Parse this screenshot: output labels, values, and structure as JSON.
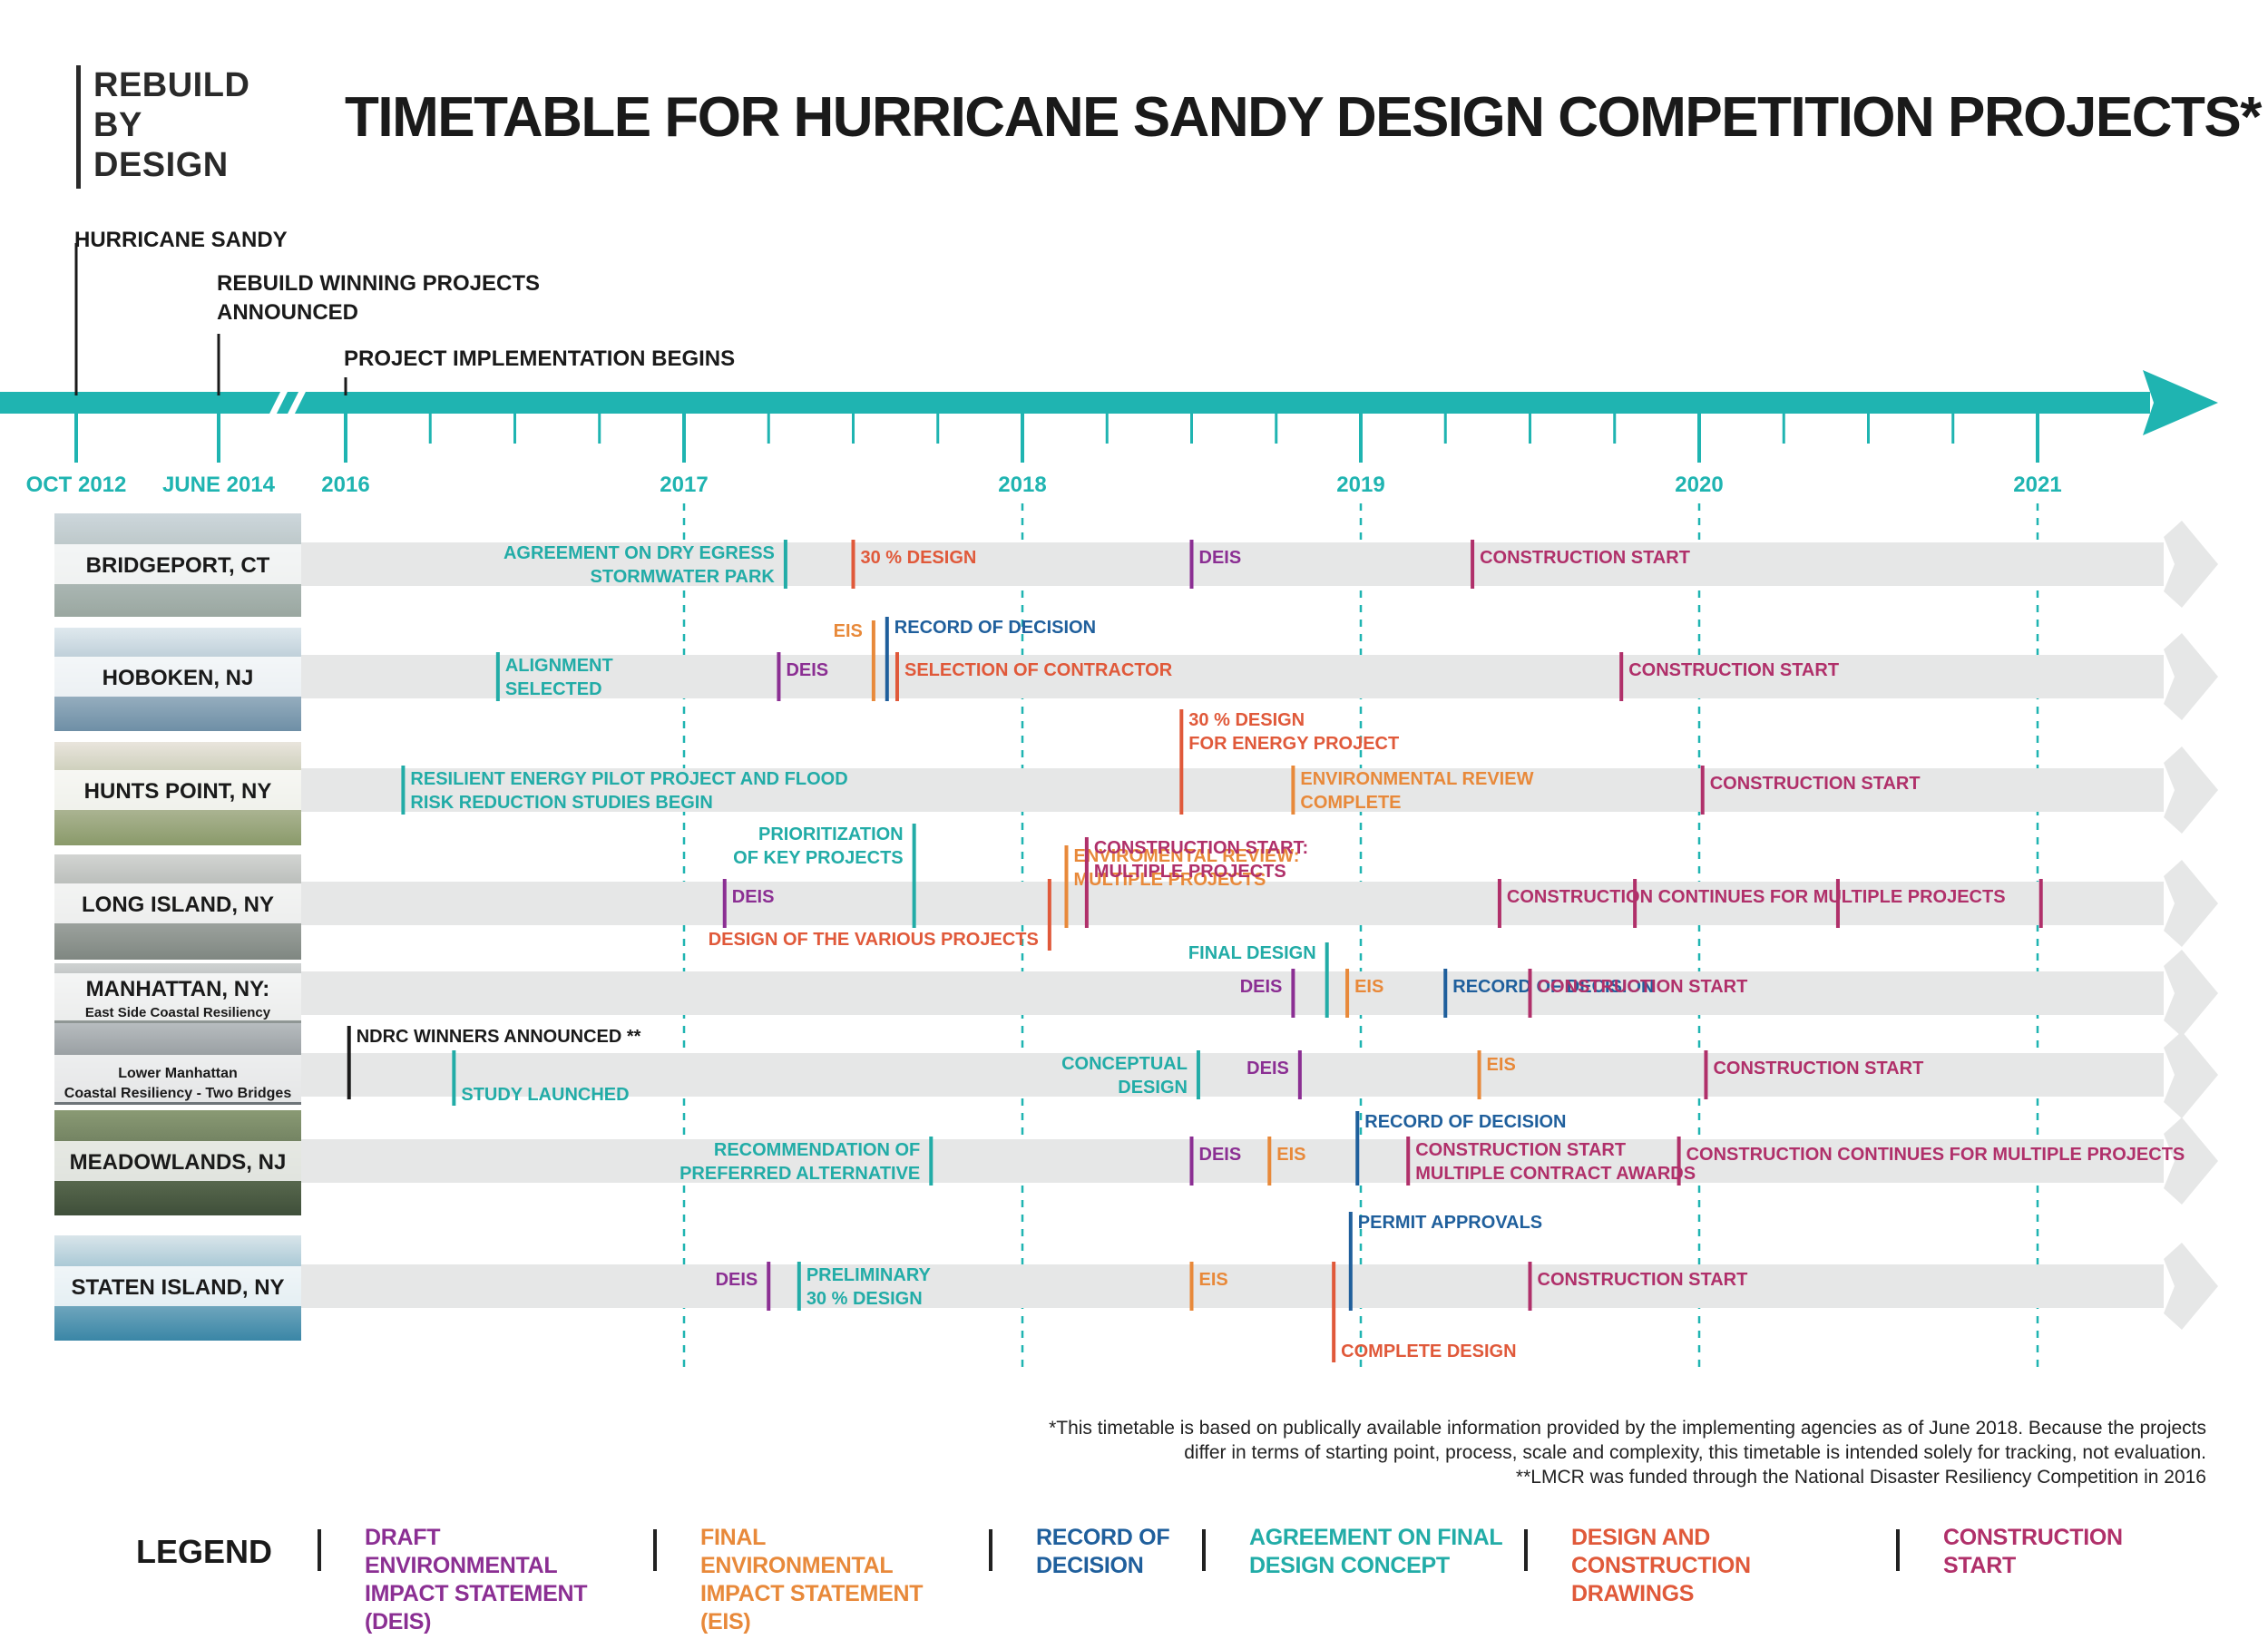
{
  "logo": {
    "line1": "REBUILD",
    "line2": "BY",
    "line3": "DESIGN"
  },
  "title": "TIMETABLE FOR HURRICANE SANDY DESIGN COMPETITION PROJECTS*",
  "colors": {
    "teal": "#1fb4b1",
    "deis": "#8b2f93",
    "eis": "#e8893a",
    "rod": "#1f5f9c",
    "agreement": "#22aca7",
    "design": "#e0593a",
    "construction": "#b0306a",
    "black": "#1a1a1a",
    "bar": "#e6e7e7"
  },
  "axis": {
    "ticks": [
      "OCT 2012",
      "JUNE 2014",
      "2016",
      "2017",
      "2018",
      "2019",
      "2020",
      "2021"
    ],
    "top_events": [
      {
        "lines": [
          "HURRICANE SANDY"
        ],
        "date": "OCT 2012"
      },
      {
        "lines": [
          "REBUILD WINNING PROJECTS",
          "ANNOUNCED"
        ],
        "date": "JUNE 2014"
      },
      {
        "lines": [
          "PROJECT IMPLEMENTATION BEGINS"
        ],
        "date": "2016"
      }
    ]
  },
  "projects": [
    {
      "name": [
        "BRIDGEPORT, CT"
      ],
      "events": [
        {
          "date": 2017.3,
          "cat": "agreement",
          "side": "left",
          "lines": [
            "AGREEMENT ON DRY EGRESS",
            "STORMWATER PARK"
          ]
        },
        {
          "date": 2017.5,
          "cat": "design",
          "side": "right",
          "lines": [
            "30 % DESIGN"
          ]
        },
        {
          "date": 2018.5,
          "cat": "deis",
          "side": "right",
          "lines": [
            "DEIS"
          ]
        },
        {
          "date": 2019.33,
          "cat": "construction",
          "side": "right",
          "lines": [
            "CONSTRUCTION START"
          ]
        }
      ]
    },
    {
      "name": [
        "HOBOKEN, NJ"
      ],
      "events": [
        {
          "date": 2016.45,
          "cat": "agreement",
          "side": "right",
          "lines": [
            "ALIGNMENT",
            "SELECTED"
          ]
        },
        {
          "date": 2017.28,
          "cat": "deis",
          "side": "right",
          "lines": [
            "DEIS"
          ]
        },
        {
          "date": 2017.56,
          "cat": "eis",
          "side": "left",
          "lines": [
            "EIS"
          ]
        },
        {
          "date": 2017.6,
          "cat": "rod",
          "side": "right",
          "lines": [
            "RECORD OF DECISION"
          ]
        },
        {
          "date": 2017.63,
          "cat": "design",
          "side": "right",
          "lines": [
            "SELECTION OF CONTRACTOR"
          ]
        },
        {
          "date": 2019.77,
          "cat": "construction",
          "side": "right",
          "lines": [
            "CONSTRUCTION START"
          ]
        }
      ]
    },
    {
      "name": [
        "HUNTS POINT, NY"
      ],
      "events": [
        {
          "date": 2016.17,
          "cat": "agreement",
          "side": "right",
          "lines": [
            "RESILIENT ENERGY PILOT PROJECT AND FLOOD",
            "RISK REDUCTION STUDIES BEGIN"
          ]
        },
        {
          "date": 2018.47,
          "cat": "design",
          "side": "right",
          "lines": [
            "30 % DESIGN",
            "FOR ENERGY PROJECT"
          ]
        },
        {
          "date": 2018.8,
          "cat": "eis",
          "side": "right",
          "lines": [
            "ENVIRONMENTAL REVIEW",
            "COMPLETE"
          ]
        },
        {
          "date": 2020.01,
          "cat": "construction",
          "side": "right",
          "lines": [
            "CONSTRUCTION START"
          ]
        }
      ]
    },
    {
      "name": [
        "LONG ISLAND, NY"
      ],
      "events": [
        {
          "date": 2017.12,
          "cat": "deis",
          "side": "right",
          "lines": [
            "DEIS"
          ]
        },
        {
          "date": 2017.68,
          "cat": "agreement",
          "side": "left",
          "lines": [
            "PRIORITIZATION",
            "OF KEY PROJECTS"
          ]
        },
        {
          "date": 2018.08,
          "cat": "design",
          "side": "left",
          "lines": [
            "DESIGN OF THE VARIOUS PROJECTS"
          ]
        },
        {
          "date": 2018.13,
          "cat": "eis",
          "side": "right",
          "lines": [
            "ENVIROMENTAL REVIEW:",
            "MULTIPLE PROJECTS"
          ]
        },
        {
          "date": 2018.19,
          "cat": "construction",
          "side": "right",
          "lines": [
            "CONSTRUCTION START:",
            "MULTIPLE PROJECTS"
          ]
        },
        {
          "date": 2019.41,
          "cat": "construction",
          "side": "right",
          "lines": [
            "CONSTRUCTION CONTINUES FOR MULTIPLE PROJECTS"
          ]
        },
        {
          "date": 2019.81,
          "cat": "construction",
          "side": "none",
          "lines": []
        },
        {
          "date": 2020.41,
          "cat": "construction",
          "side": "none",
          "lines": []
        },
        {
          "date": 2021.01,
          "cat": "construction",
          "side": "none",
          "lines": []
        }
      ]
    },
    {
      "name": [
        "MANHATTAN, NY:",
        "East Side Coastal Resiliency"
      ],
      "events": [
        {
          "date": 2018.8,
          "cat": "deis",
          "side": "left",
          "lines": [
            "DEIS"
          ]
        },
        {
          "date": 2018.9,
          "cat": "agreement",
          "side": "left",
          "lines": [
            "FINAL DESIGN"
          ]
        },
        {
          "date": 2018.96,
          "cat": "eis",
          "side": "right",
          "lines": [
            "EIS"
          ]
        },
        {
          "date": 2019.25,
          "cat": "rod",
          "side": "right",
          "lines": [
            "RECORD OF DECISION"
          ]
        },
        {
          "date": 2019.5,
          "cat": "construction",
          "side": "right",
          "lines": [
            "CONSTRUCTION START"
          ]
        }
      ]
    },
    {
      "name": [
        "Lower Manhattan",
        "Coastal Resiliency - Two Bridges"
      ],
      "events": [
        {
          "date": 2016.01,
          "cat": "black",
          "side": "right",
          "lines": [
            "NDRC WINNERS ANNOUNCED **"
          ]
        },
        {
          "date": 2016.32,
          "cat": "agreement",
          "side": "right",
          "lines": [
            "STUDY LAUNCHED"
          ]
        },
        {
          "date": 2018.52,
          "cat": "agreement",
          "side": "left",
          "lines": [
            "CONCEPTUAL",
            "DESIGN"
          ]
        },
        {
          "date": 2018.82,
          "cat": "deis",
          "side": "left",
          "lines": [
            "DEIS"
          ]
        },
        {
          "date": 2019.35,
          "cat": "eis",
          "side": "right",
          "lines": [
            "EIS"
          ]
        },
        {
          "date": 2020.02,
          "cat": "construction",
          "side": "right",
          "lines": [
            "CONSTRUCTION START"
          ]
        }
      ]
    },
    {
      "name": [
        "MEADOWLANDS, NJ"
      ],
      "events": [
        {
          "date": 2017.73,
          "cat": "agreement",
          "side": "left",
          "lines": [
            "RECOMMENDATION OF",
            "PREFERRED ALTERNATIVE"
          ]
        },
        {
          "date": 2018.5,
          "cat": "deis",
          "side": "right",
          "lines": [
            "DEIS"
          ]
        },
        {
          "date": 2018.73,
          "cat": "eis",
          "side": "right",
          "lines": [
            "EIS"
          ]
        },
        {
          "date": 2018.99,
          "cat": "rod",
          "side": "right",
          "lines": [
            "RECORD OF DECISION"
          ]
        },
        {
          "date": 2019.14,
          "cat": "construction",
          "side": "right",
          "lines": [
            "CONSTRUCTION START",
            "MULTIPLE CONTRACT AWARDS"
          ]
        },
        {
          "date": 2019.94,
          "cat": "construction",
          "side": "right",
          "lines": [
            "CONSTRUCTION CONTINUES FOR MULTIPLE PROJECTS"
          ]
        }
      ]
    },
    {
      "name": [
        "STATEN ISLAND, NY"
      ],
      "events": [
        {
          "date": 2017.25,
          "cat": "deis",
          "side": "left",
          "lines": [
            "DEIS"
          ]
        },
        {
          "date": 2017.34,
          "cat": "agreement",
          "side": "right",
          "lines": [
            "PRELIMINARY",
            "30 % DESIGN"
          ]
        },
        {
          "date": 2018.5,
          "cat": "eis",
          "side": "right",
          "lines": [
            "EIS"
          ]
        },
        {
          "date": 2018.92,
          "cat": "design",
          "side": "right",
          "lines": [
            "COMPLETE DESIGN"
          ]
        },
        {
          "date": 2018.97,
          "cat": "rod",
          "side": "right",
          "lines": [
            "PERMIT APPROVALS"
          ]
        },
        {
          "date": 2019.5,
          "cat": "construction",
          "side": "right",
          "lines": [
            "CONSTRUCTION START"
          ]
        }
      ]
    }
  ],
  "footnote": {
    "line1": "*This timetable is based on publically available information provided by the implementing agencies as of June 2018.  Because the projects",
    "line2": "differ in terms of starting point, process, scale and complexity, this timetable is intended solely for tracking, not evaluation.",
    "line3": "**LMCR was funded through the National Disaster Resiliency Competition in 2016"
  },
  "legend": {
    "title": "LEGEND",
    "items": [
      {
        "label": [
          "DRAFT ENVIRONMENTAL",
          "IMPACT STATEMENT (DEIS)"
        ],
        "color": "#8b2f93"
      },
      {
        "label": [
          "FINAL ENVIRONMENTAL",
          "IMPACT STATEMENT (EIS)"
        ],
        "color": "#e8893a"
      },
      {
        "label": [
          "RECORD OF",
          "DECISION"
        ],
        "color": "#1f5f9c"
      },
      {
        "label": [
          "AGREEMENT ON FINAL",
          "DESIGN CONCEPT"
        ],
        "color": "#22aca7"
      },
      {
        "label": [
          "DESIGN AND CONSTRUCTION",
          "DRAWINGS"
        ],
        "color": "#e0593a"
      },
      {
        "label": [
          "CONSTRUCTION",
          "START"
        ],
        "color": "#b0306a"
      }
    ]
  }
}
